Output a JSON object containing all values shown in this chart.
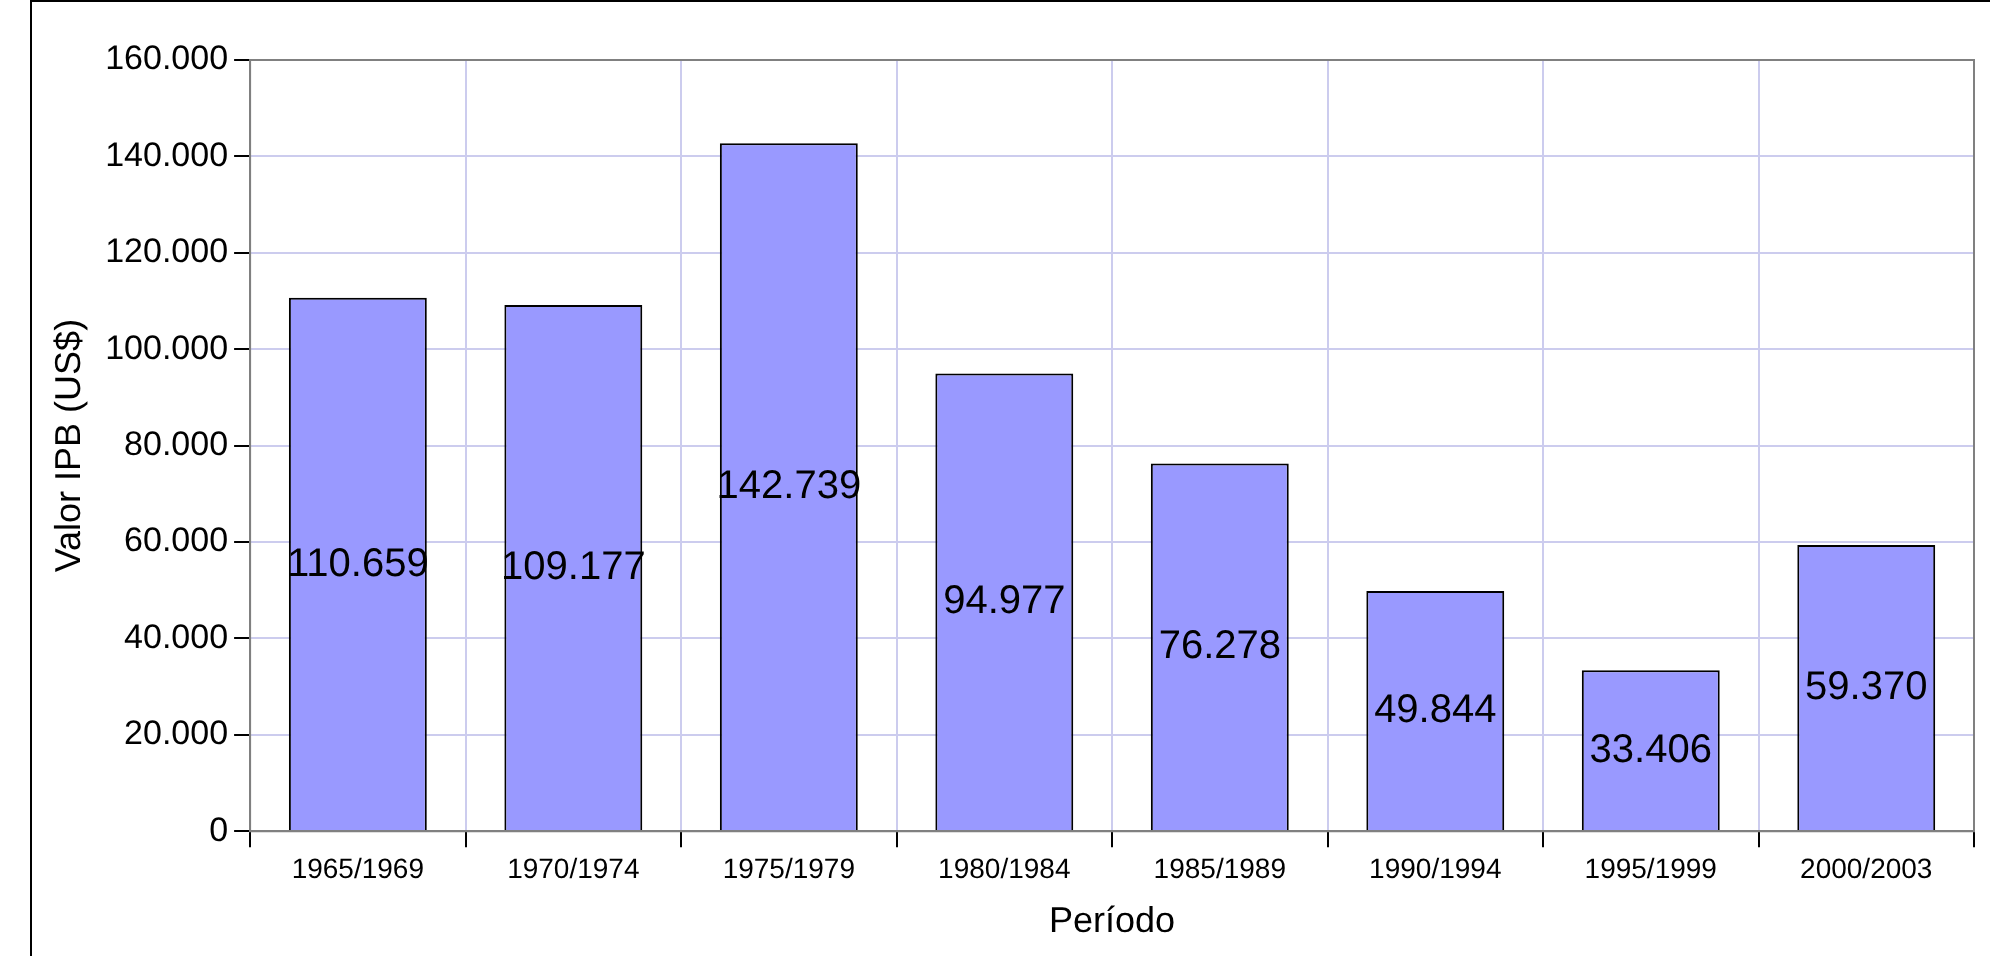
{
  "chart_data": {
    "type": "bar",
    "xlabel": "Período",
    "ylabel": "Valor IPB (US$)",
    "categories": [
      "1965/1969",
      "1970/1974",
      "1975/1979",
      "1980/1984",
      "1985/1989",
      "1990/1994",
      "1995/1999",
      "2000/2003"
    ],
    "values": [
      110659,
      109177,
      142739,
      94977,
      76278,
      49844,
      33406,
      59370
    ],
    "value_labels": [
      "110.659",
      "109.177",
      "142.739",
      "94.977",
      "76.278",
      "49.844",
      "33.406",
      "59.370"
    ],
    "color": "#9999ff",
    "ylim": [
      0,
      160000
    ],
    "yticks": [
      {
        "value": 0,
        "label": "0"
      },
      {
        "value": 20000,
        "label": "20.000"
      },
      {
        "value": 40000,
        "label": "40.000"
      },
      {
        "value": 60000,
        "label": "60.000"
      },
      {
        "value": 80000,
        "label": "80.000"
      },
      {
        "value": 100000,
        "label": "100.000"
      },
      {
        "value": 120000,
        "label": "120.000"
      },
      {
        "value": 140000,
        "label": "140.000"
      },
      {
        "value": 160000,
        "label": "160.000"
      }
    ],
    "grid": true,
    "legend": false
  }
}
